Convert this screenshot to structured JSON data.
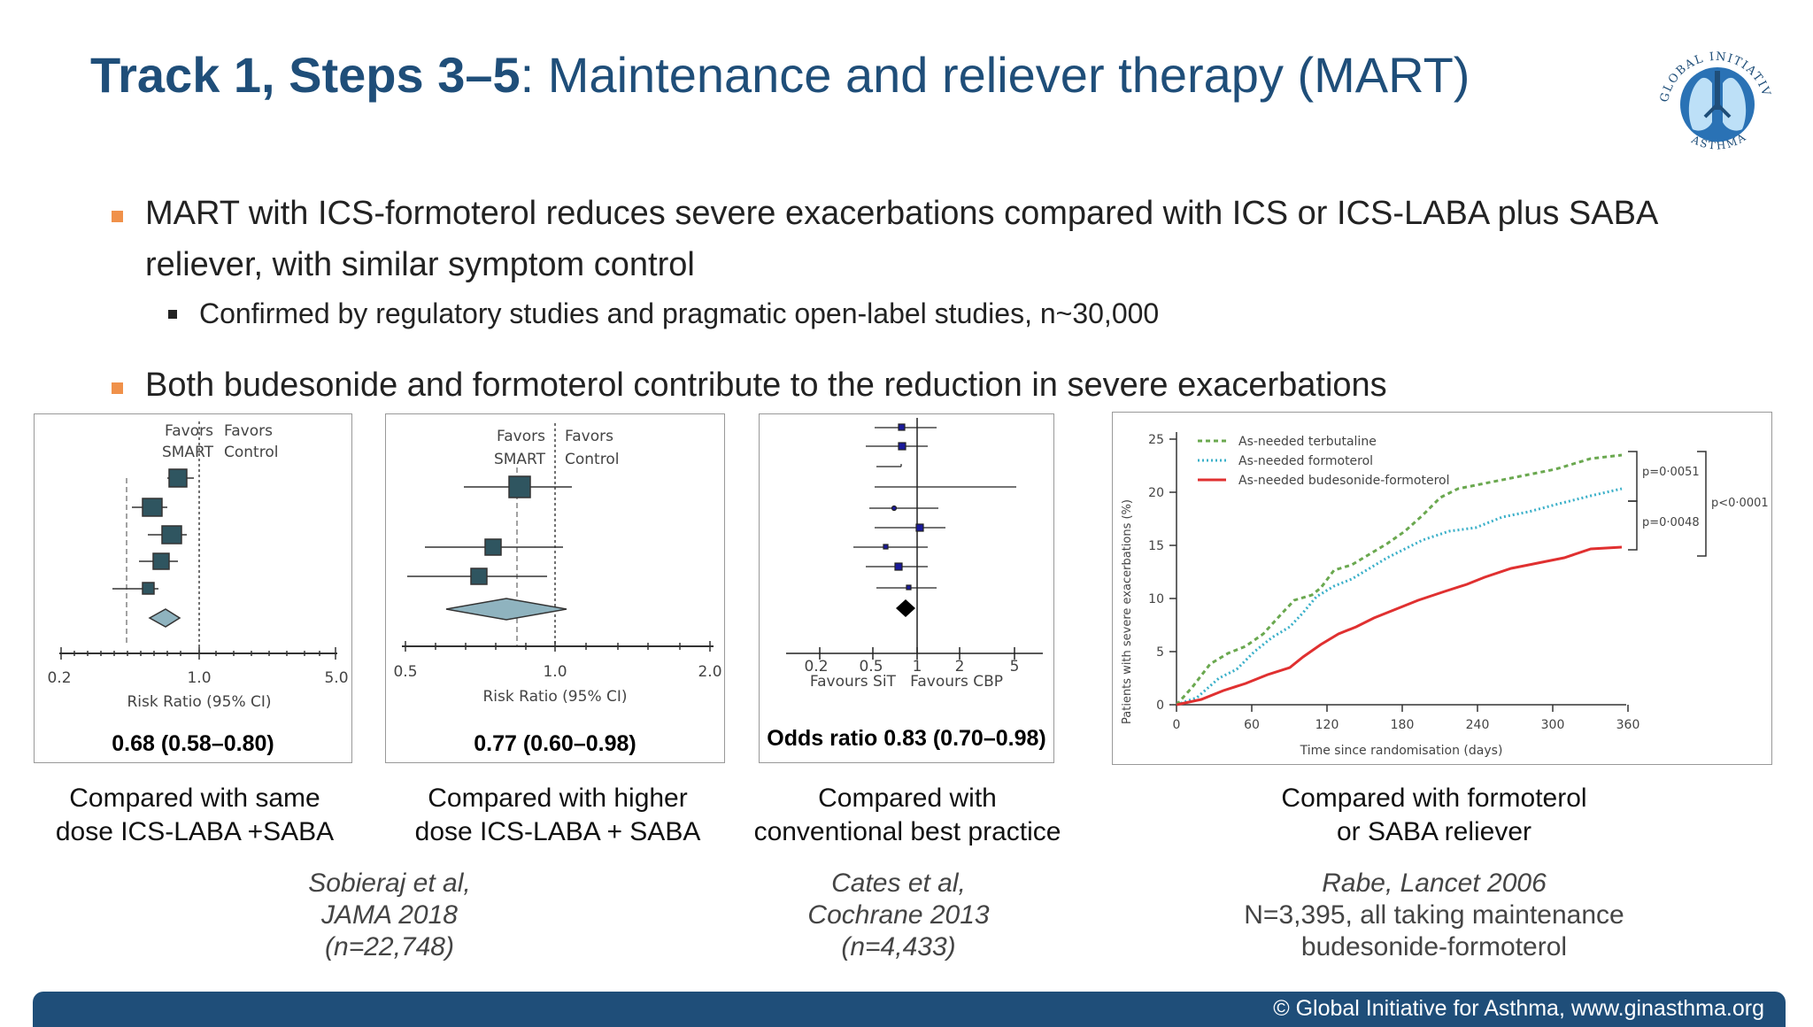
{
  "title": {
    "bold": "Track 1, Steps 3–5",
    "rest": ": Maintenance and reliever therapy (MART)"
  },
  "bullets": [
    {
      "line1": "MART with ICS-formoterol reduces severe exacerbations compared with ICS or ICS-LABA plus SABA",
      "line2": "reliever, with similar symptom control"
    },
    {
      "line1": "Both budesonide and formoterol contribute to the reduction in severe exacerbations"
    }
  ],
  "subbullet": "Confirmed by regulatory studies and pragmatic open-label studies, n~30,000",
  "panels": [
    {
      "favors_left": [
        "Favors",
        "SMART"
      ],
      "favors_right": [
        "Favors",
        "Control"
      ],
      "ticks": [
        "0.2",
        "1.0",
        "5.0"
      ],
      "axis_label": "Risk Ratio (95% CI)",
      "stat": "0.68 (0.58–0.80)",
      "caption": [
        "Compared with same",
        "dose ICS-LABA +SABA"
      ]
    },
    {
      "favors_left": [
        "Favors",
        "SMART"
      ],
      "favors_right": [
        "Favors",
        "Control"
      ],
      "ticks": [
        "0.5",
        "1.0",
        "2.0"
      ],
      "axis_label": "Risk Ratio (95% CI)",
      "stat": "0.77 (0.60–0.98)",
      "caption": [
        "Compared with higher",
        "dose ICS-LABA + SABA"
      ]
    },
    {
      "ticks": [
        "0.2",
        "0.5",
        "1",
        "2",
        "5"
      ],
      "axis_label": "Favours SiT   Favours CBP",
      "stat": "Odds ratio 0.83 (0.70–0.98)",
      "caption": [
        "Compared with",
        "conventional best practice"
      ]
    },
    {
      "legend": [
        "As-needed terbutaline",
        "As-needed formoterol",
        "As-needed budesonide-formoterol"
      ],
      "y_label": "Patients with severe exacerbations (%)",
      "x_label": "Time since randomisation (days)",
      "x_ticks": [
        "0",
        "60",
        "120",
        "180",
        "240",
        "300",
        "360"
      ],
      "y_ticks": [
        "0",
        "5",
        "10",
        "15",
        "20",
        "25"
      ],
      "p_values": [
        "p=0·0051",
        "p=0·0048",
        "p<0·0001"
      ],
      "caption": [
        "Compared with formoterol",
        "or SABA reliever"
      ]
    }
  ],
  "citations": [
    {
      "lines": [
        "Sobieraj et al,",
        "JAMA 2018",
        "(n=22,748)"
      ]
    },
    {
      "lines": [
        "Cates et al,",
        "Cochrane 2013",
        "(n=4,433)"
      ]
    },
    {
      "lines": [
        "Rabe, Lancet 2006",
        "N=3,395, all taking maintenance",
        "budesonide-formoterol"
      ]
    }
  ],
  "footer": "© Global Initiative for Asthma, www.ginasthma.org",
  "logo": {
    "text": "GLOBAL INITIATIVE FOR ASTHMA"
  },
  "colors": {
    "title": "#1f4e79",
    "bullet": "#f0914a",
    "footer": "#1f4e79",
    "terbutaline": "#6aa84f",
    "formoterol": "#3bb0c9",
    "budesonide": "#e03030"
  }
}
